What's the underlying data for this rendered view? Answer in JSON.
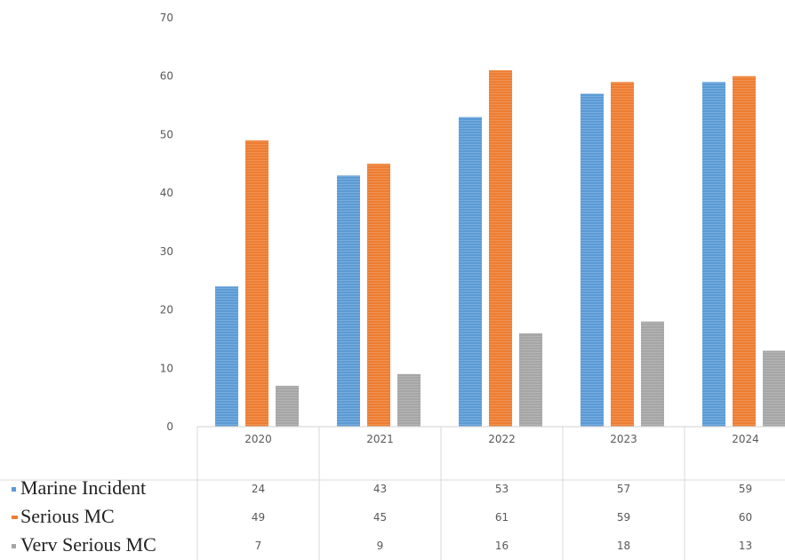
{
  "chart_data": {
    "type": "bar",
    "categories": [
      "2020",
      "2021",
      "2022",
      "2023",
      "2024"
    ],
    "series": [
      {
        "name": "Marine Incident",
        "values": [
          24,
          43,
          53,
          57,
          59
        ],
        "color": "#5b9bd5"
      },
      {
        "name": "Serious MC",
        "values": [
          49,
          45,
          61,
          59,
          60
        ],
        "color": "#ed7d31"
      },
      {
        "name": "Verv Serious MC",
        "values": [
          7,
          9,
          16,
          18,
          13
        ],
        "color": "#a5a5a5"
      }
    ],
    "y_ticks": [
      "0",
      "10",
      "20",
      "30",
      "40",
      "50",
      "60",
      "70"
    ],
    "ylim": [
      0,
      70
    ],
    "legend": "data-table",
    "grid": false
  }
}
